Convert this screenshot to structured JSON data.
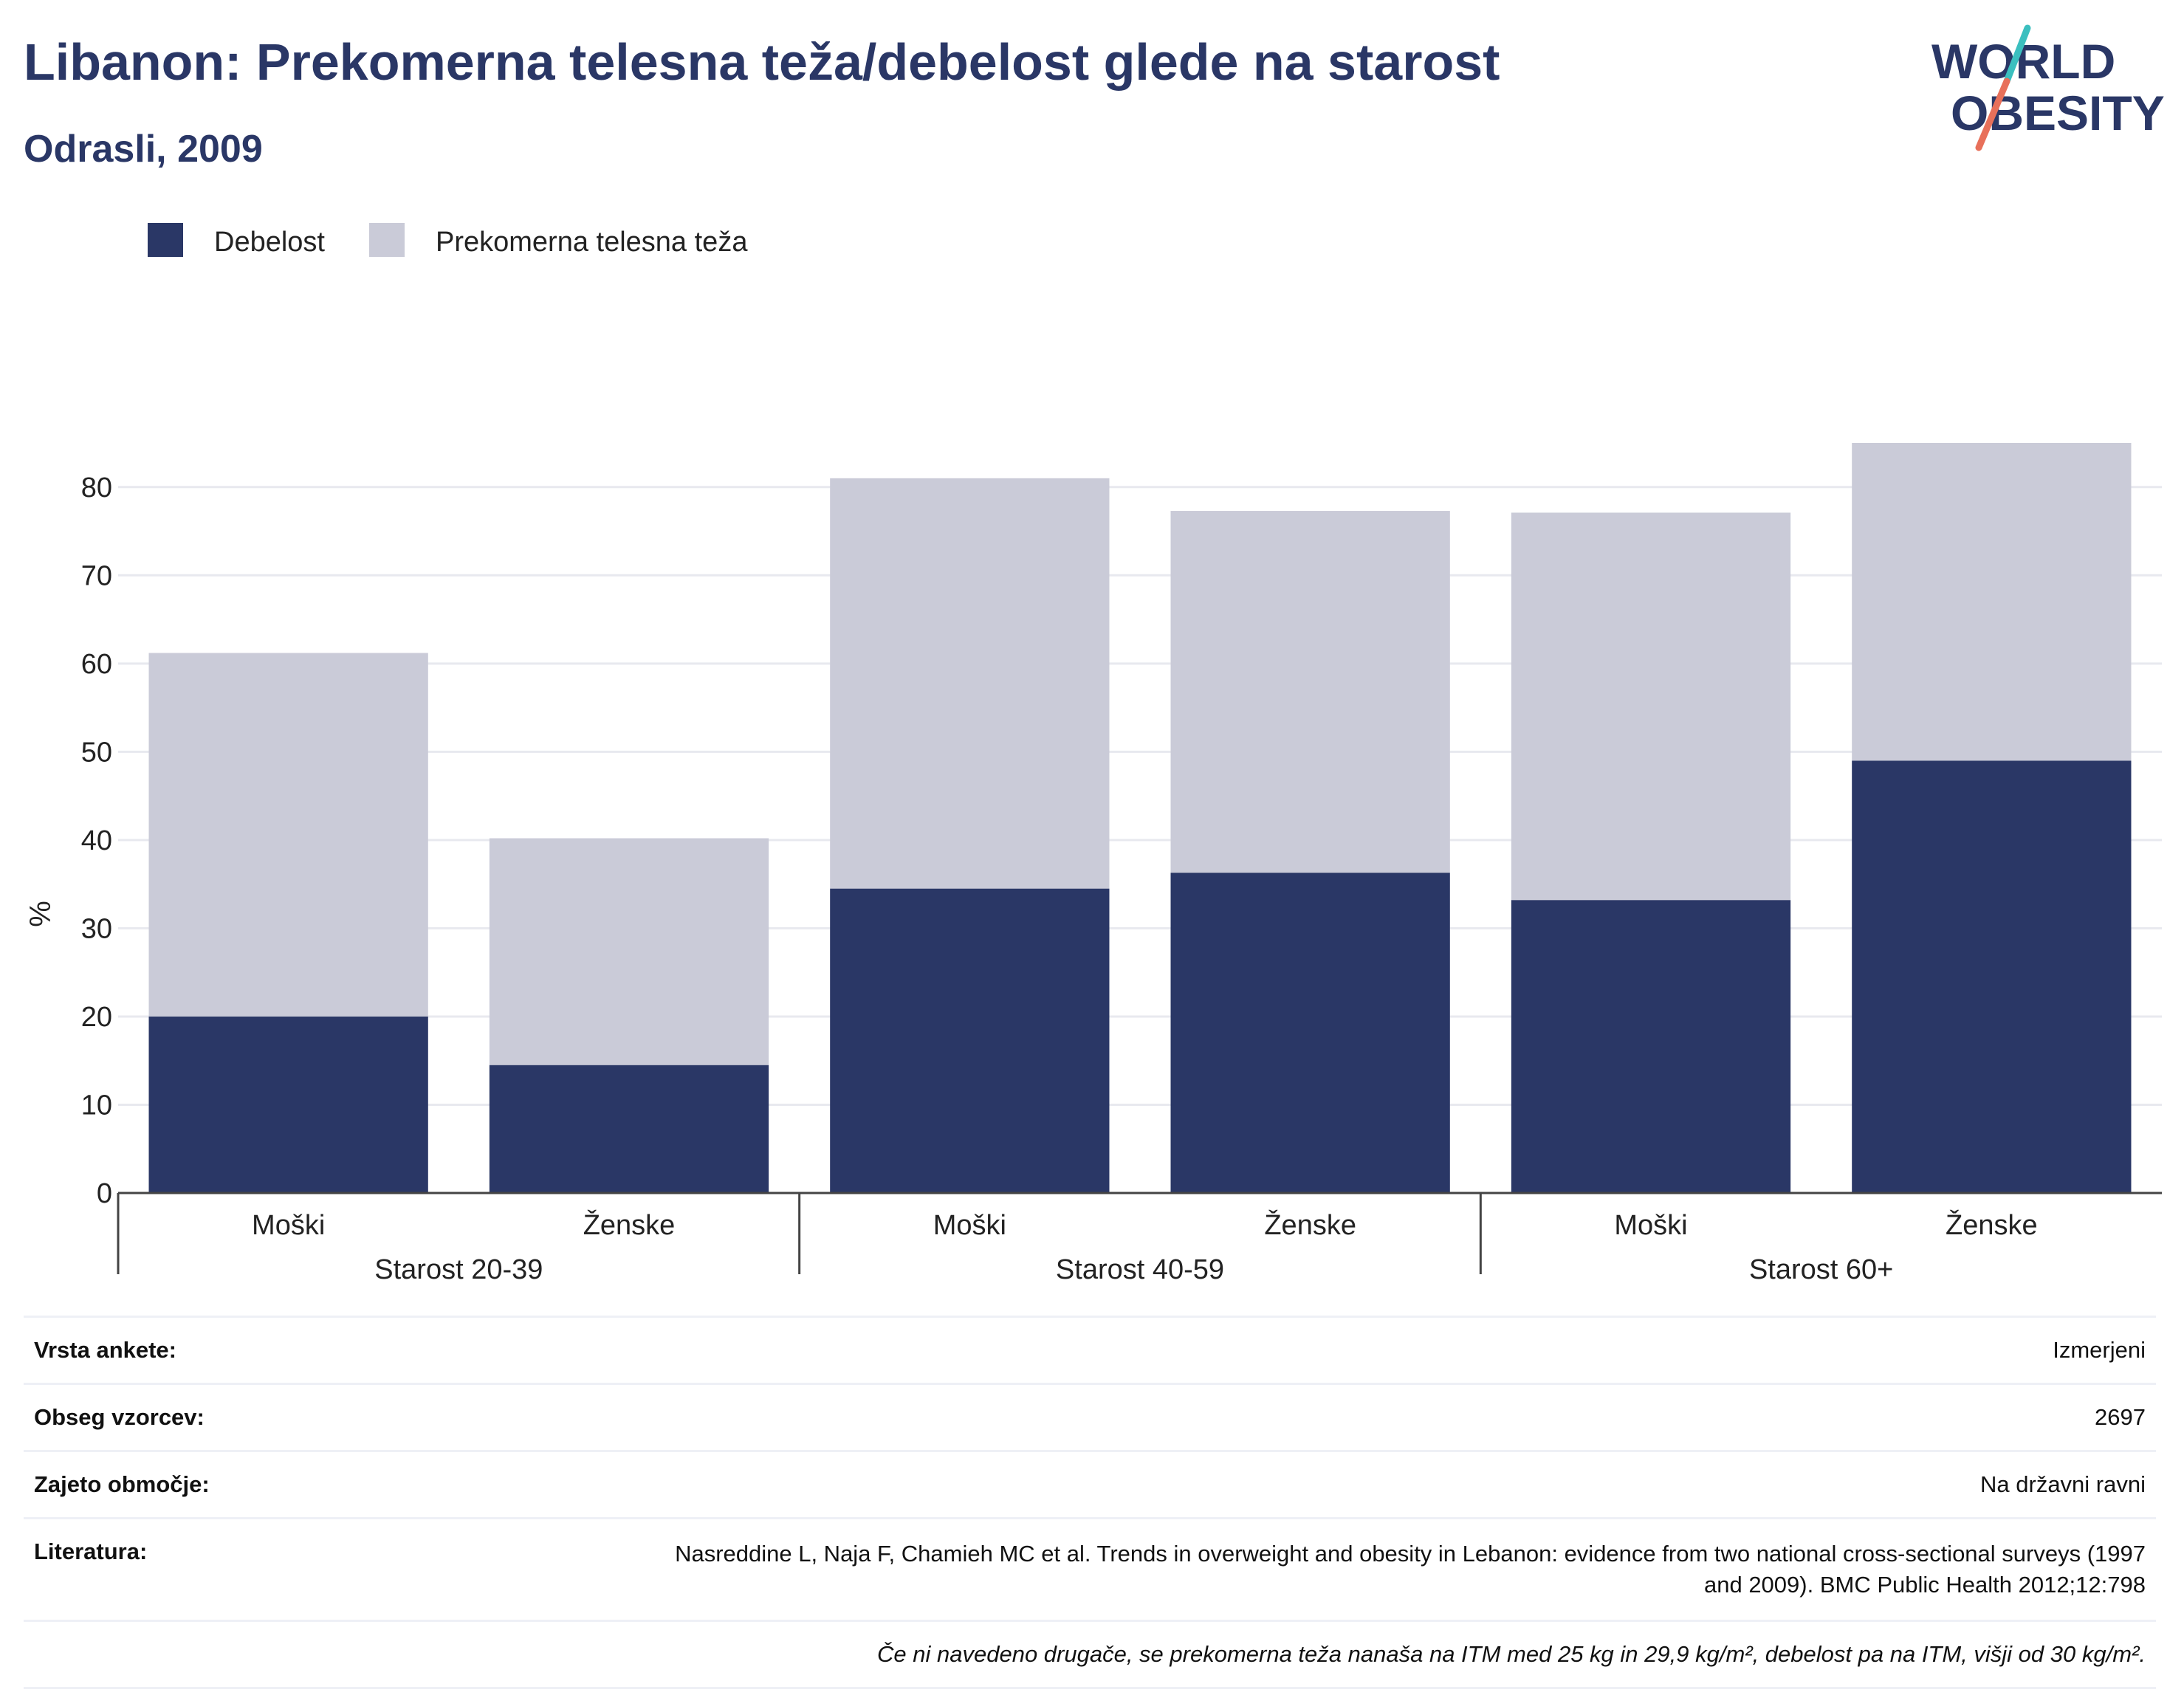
{
  "header": {
    "title": "Libanon: Prekomerna telesna teža/debelost glede na starost",
    "subtitle": "Odrasli, 2009"
  },
  "logo": {
    "line1": "WORLD",
    "line2": "OBESITY",
    "icon": "world-obesity-logo"
  },
  "colors": {
    "obesity": "#2a3766",
    "overweight": "#cacbd8",
    "accent_teal": "#3bbfbf",
    "accent_orange": "#e8705a"
  },
  "chart_data": {
    "type": "bar",
    "stacked": true,
    "ylabel": "%",
    "ylim": [
      0,
      85
    ],
    "yticks": [
      0,
      10,
      20,
      30,
      40,
      50,
      60,
      70,
      80
    ],
    "grid": true,
    "legend_position": "top-left",
    "categories": [
      "Moški",
      "Ženske",
      "Moški",
      "Ženske",
      "Moški",
      "Ženske"
    ],
    "groups": [
      {
        "label": "Starost 20-39",
        "size": 2
      },
      {
        "label": "Starost 40-59",
        "size": 2
      },
      {
        "label": "Starost 60+",
        "size": 2
      }
    ],
    "series": [
      {
        "name": "Debelost",
        "values": [
          20.0,
          14.5,
          34.5,
          36.3,
          33.2,
          49.0
        ]
      },
      {
        "name": "Prekomerna telesna teža",
        "values": [
          41.2,
          25.7,
          46.5,
          41.0,
          43.9,
          36.0
        ]
      }
    ]
  },
  "info": {
    "survey_type": {
      "label": "Vrsta ankete:",
      "value": "Izmerjeni"
    },
    "sample_size": {
      "label": "Obseg vzorcev:",
      "value": "2697"
    },
    "area": {
      "label": "Zajeto območje:",
      "value": "Na državni ravni"
    },
    "literature": {
      "label": "Literatura:",
      "value": "Nasreddine L, Naja F, Chamieh MC et al. Trends in overweight and obesity in Lebanon: evidence from two national cross-sectional surveys (1997 and 2009). BMC Public Health 2012;12:798"
    },
    "note": "Če ni navedeno drugače, se prekomerna teža nanaša na ITM med 25 kg in 29,9 kg/m², debelost pa na ITM, višji od 30 kg/m²."
  }
}
